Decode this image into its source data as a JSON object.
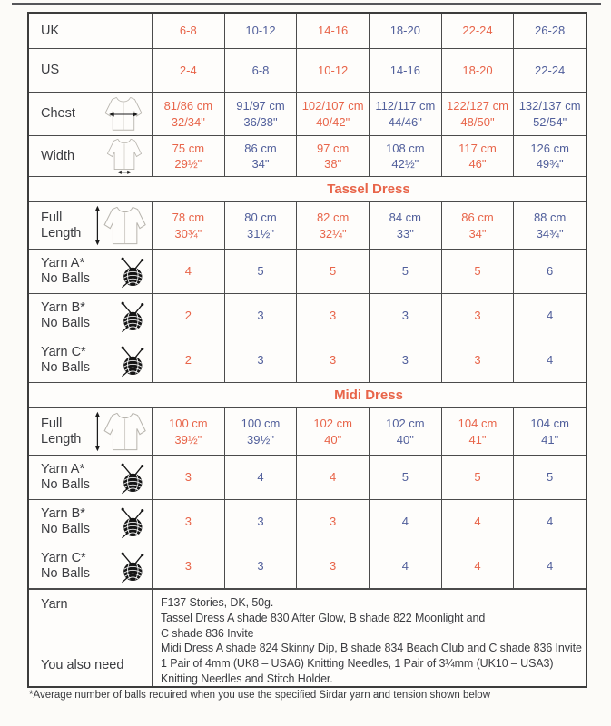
{
  "colors": {
    "orange": "#e8654a",
    "navy": "#515f9b",
    "text": "#3b3c40",
    "grid": "#4b4b4b"
  },
  "page": {
    "footnote": "*Average number of balls required when you use the specified Sirdar yarn and tension shown below"
  },
  "table": {
    "rows": [
      {
        "type": "sizes",
        "label": "UK",
        "values": [
          "6-8",
          "10-12",
          "14-16",
          "18-20",
          "22-24",
          "26-28"
        ]
      },
      {
        "type": "sizes",
        "label": "US",
        "values": [
          "2-4",
          "6-8",
          "10-12",
          "14-16",
          "18-20",
          "22-24"
        ]
      },
      {
        "type": "sizes",
        "label": "Chest",
        "icon": "garment-chest-icon",
        "values": [
          "81/86 cm\n32/34\"",
          "91/97 cm\n36/38\"",
          "102/107 cm\n40/42\"",
          "112/117 cm\n44/46\"",
          "122/127 cm\n48/50\"",
          "132/137 cm\n52/54\""
        ]
      },
      {
        "type": "sizes",
        "label": "Width",
        "icon": "garment-width-icon",
        "values": [
          "75 cm\n29½\"",
          "86 cm\n34\"",
          "97 cm\n38\"",
          "108 cm\n42½\"",
          "117 cm\n46\"",
          "126 cm\n49¾\""
        ]
      },
      {
        "type": "section",
        "title": "Tassel Dress"
      },
      {
        "type": "sizes",
        "label": "Full Length",
        "icon": "garment-length-icon",
        "values": [
          "78 cm\n30¾\"",
          "80 cm\n31½\"",
          "82 cm\n32¼\"",
          "84 cm\n33\"",
          "86 cm\n34\"",
          "88 cm\n34¾\""
        ]
      },
      {
        "type": "sizes",
        "label": "Yarn A*\nNo Balls",
        "icon": "yarn-ball-icon",
        "values": [
          "4",
          "5",
          "5",
          "5",
          "5",
          "6"
        ]
      },
      {
        "type": "sizes",
        "label": "Yarn B*\nNo Balls",
        "icon": "yarn-ball-icon",
        "values": [
          "2",
          "3",
          "3",
          "3",
          "3",
          "4"
        ]
      },
      {
        "type": "sizes",
        "label": "Yarn C*\nNo Balls",
        "icon": "yarn-ball-icon",
        "values": [
          "2",
          "3",
          "3",
          "3",
          "3",
          "4"
        ]
      },
      {
        "type": "section",
        "title": "Midi Dress"
      },
      {
        "type": "sizes",
        "label": "Full Length",
        "icon": "garment-length-icon",
        "values": [
          "100 cm\n39½\"",
          "100 cm\n39½\"",
          "102 cm\n40\"",
          "102 cm\n40\"",
          "104 cm\n41\"",
          "104 cm\n41\""
        ]
      },
      {
        "type": "sizes",
        "label": "Yarn A*\nNo Balls",
        "icon": "yarn-ball-icon",
        "values": [
          "3",
          "4",
          "4",
          "5",
          "5",
          "5"
        ]
      },
      {
        "type": "sizes",
        "label": "Yarn B*\nNo Balls",
        "icon": "yarn-ball-icon",
        "values": [
          "3",
          "3",
          "3",
          "4",
          "4",
          "4"
        ]
      },
      {
        "type": "sizes",
        "label": "Yarn C*\nNo Balls",
        "icon": "yarn-ball-icon",
        "values": [
          "3",
          "3",
          "3",
          "4",
          "4",
          "4"
        ]
      }
    ],
    "footer": {
      "label_yarn": "Yarn",
      "label_need": "You also need",
      "lines": [
        "F137 Stories, DK, 50g.",
        "Tassel Dress A shade 830 After Glow, B shade 822 Moonlight and",
        "C shade 836 Invite",
        "Midi Dress A shade 824 Skinny Dip, B shade 834 Beach Club and C shade 836 Invite",
        "1 Pair of 4mm (UK8 – USA6) Knitting Needles, 1 Pair of 3¼mm (UK10 – USA3)",
        "Knitting Needles and Stitch Holder."
      ]
    }
  }
}
